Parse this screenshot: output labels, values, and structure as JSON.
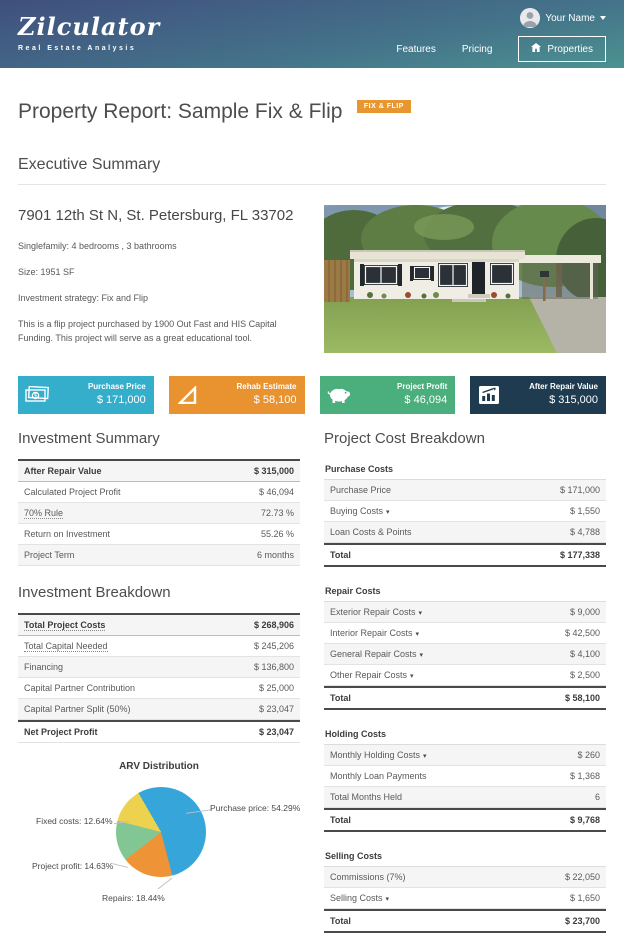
{
  "header": {
    "logo": "Zilculator",
    "tagline": "Real Estate Analysis",
    "user_name": "Your Name",
    "nav_features": "Features",
    "nav_pricing": "Pricing",
    "nav_properties": "Properties"
  },
  "report": {
    "title": "Property Report: Sample Fix & Flip",
    "badge": "FIX & FLIP",
    "badge_color": "#e8962f"
  },
  "executive_summary": {
    "heading": "Executive Summary",
    "address": "7901 12th St N, St. Petersburg, FL 33702",
    "details": [
      "Singlefamily: 4 bedrooms , 3 bathrooms",
      "Size: 1951 SF",
      "Investment strategy: Fix and Flip",
      "This is a flip project purchased by 1900 Out Fast and HIS Capital Funding. This project will serve as a great educational tool."
    ]
  },
  "metric_cards": [
    {
      "label": "Purchase Price",
      "value": "$ 171,000",
      "color": "#35aecc",
      "icon": "cash-icon"
    },
    {
      "label": "Rehab Estimate",
      "value": "$ 58,100",
      "color": "#e8932f",
      "icon": "set-square-icon"
    },
    {
      "label": "Project Profit",
      "value": "$ 46,094",
      "color": "#4bae7d",
      "icon": "piggy-bank-icon"
    },
    {
      "label": "After Repair Value",
      "value": "$ 315,000",
      "color": "#1e3b50",
      "icon": "chart-icon"
    }
  ],
  "investment_summary": {
    "heading": "Investment Summary",
    "rows": [
      {
        "label": "After Repair Value",
        "value": "$ 315,000",
        "bold": true
      },
      {
        "label": "Calculated Project Profit",
        "value": "$ 46,094"
      },
      {
        "label": "70% Rule",
        "value": "72.73 %",
        "dotted": true
      },
      {
        "label": "Return on Investment",
        "value": "55.26 %"
      },
      {
        "label": "Project Term",
        "value": "6 months"
      }
    ]
  },
  "investment_breakdown": {
    "heading": "Investment Breakdown",
    "rows": [
      {
        "label": "Total Project Costs",
        "value": "$ 268,906",
        "bold": true,
        "dotted": true
      },
      {
        "label": "Total Capital Needed",
        "value": "$ 245,206",
        "dotted": true
      },
      {
        "label": "Financing",
        "value": "$ 136,800"
      },
      {
        "label": "Capital Partner Contribution",
        "value": "$ 25,000"
      },
      {
        "label": "Capital Partner Split (50%)",
        "value": "$ 23,047"
      },
      {
        "label": "Net Project Profit",
        "value": "$ 23,047",
        "bold": true,
        "total": true
      }
    ]
  },
  "project_cost_breakdown": {
    "heading": "Project Cost Breakdown",
    "sections": [
      {
        "title": "Purchase Costs",
        "rows": [
          {
            "label": "Purchase Price",
            "value": "$ 171,000"
          },
          {
            "label": "Buying Costs",
            "value": "$ 1,550",
            "caret": true
          },
          {
            "label": "Loan Costs & Points",
            "value": "$ 4,788"
          }
        ],
        "total": {
          "label": "Total",
          "value": "$ 177,338"
        }
      },
      {
        "title": "Repair Costs",
        "rows": [
          {
            "label": "Exterior Repair Costs",
            "value": "$ 9,000",
            "caret": true
          },
          {
            "label": "Interior Repair Costs",
            "value": "$ 42,500",
            "caret": true
          },
          {
            "label": "General Repair Costs",
            "value": "$ 4,100",
            "caret": true
          },
          {
            "label": "Other Repair Costs",
            "value": "$ 2,500",
            "caret": true
          }
        ],
        "total": {
          "label": "Total",
          "value": "$ 58,100"
        }
      },
      {
        "title": "Holding Costs",
        "rows": [
          {
            "label": "Monthly Holding Costs",
            "value": "$ 260",
            "caret": true
          },
          {
            "label": "Monthly Loan Payments",
            "value": "$ 1,368"
          },
          {
            "label": "Total Months Held",
            "value": "6"
          }
        ],
        "total": {
          "label": "Total",
          "value": "$ 9,768"
        }
      },
      {
        "title": "Selling Costs",
        "rows": [
          {
            "label": "Commissions (7%)",
            "value": "$ 22,050"
          },
          {
            "label": "Selling Costs",
            "value": "$ 1,650",
            "caret": true
          }
        ],
        "total": {
          "label": "Total",
          "value": "$ 23,700"
        }
      }
    ]
  },
  "chart_data": {
    "type": "pie",
    "title": "ARV Distribution",
    "labels": [
      "Purchase price",
      "Repairs",
      "Project profit",
      "Fixed costs"
    ],
    "values": [
      54.29,
      18.44,
      14.63,
      12.64
    ],
    "unit": "%",
    "colors": [
      "#36a6da",
      "#ee9336",
      "#82c793",
      "#ecd24e"
    ],
    "start_angle_deg": -30,
    "legend": "none",
    "label_style": "callout"
  },
  "ui": {
    "caret_glyph": "▾"
  }
}
